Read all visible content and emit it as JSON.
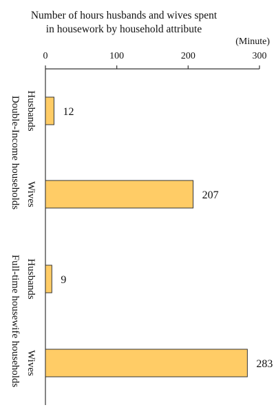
{
  "chart_data": {
    "type": "bar",
    "orientation": "horizontal",
    "title_lines": [
      "Number of hours husbands and wives spent",
      "in housework by household attribute"
    ],
    "unit_label": "(Minute)",
    "xlim": [
      0,
      300
    ],
    "ticks": [
      "0",
      "100",
      "200",
      "300"
    ],
    "tick_values": [
      0,
      100,
      200,
      300
    ],
    "grid": false,
    "legend": "none",
    "groups": [
      {
        "label": "Double-Income households",
        "bars": [
          {
            "label": "Husbands",
            "value": 12,
            "value_label": "12"
          },
          {
            "label": "Wives",
            "value": 207,
            "value_label": "207"
          }
        ]
      },
      {
        "label": "Full-time housewife households",
        "bars": [
          {
            "label": "Husbands",
            "value": 9,
            "value_label": "9"
          },
          {
            "label": "Wives",
            "value": 283,
            "value_label": "283"
          }
        ]
      }
    ],
    "colors": {
      "bar_fill": "#FFCC66",
      "bar_stroke": "#333333",
      "axis": "#333333",
      "text": "#111111"
    }
  }
}
